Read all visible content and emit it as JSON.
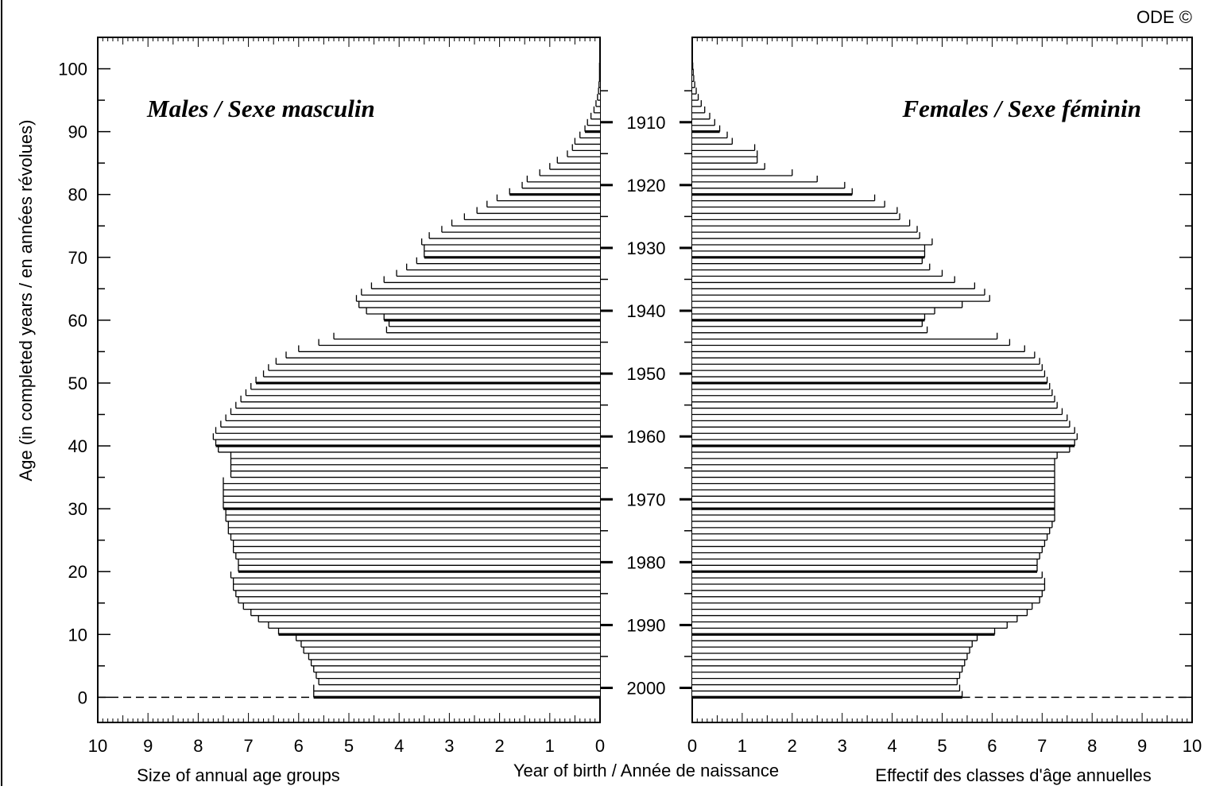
{
  "page": {
    "credit": "ODE ©"
  },
  "chart_data": {
    "type": "bar",
    "orientation": "horizontal",
    "title_left": "Males / Sexe masculin",
    "title_right": "Females / Sexe féminin",
    "ylabel": "Age (in completed years / en années révolues)",
    "xlabel_left": "Size of annual age groups",
    "xlabel_center": "Year of birth / Année de naissance",
    "xlabel_right": "Effectif des classes d'âge annuelles",
    "xlim": [
      0,
      10
    ],
    "ylim": [
      -4,
      105
    ],
    "age_ticks": [
      "0",
      "10",
      "20",
      "30",
      "40",
      "50",
      "60",
      "70",
      "80",
      "90",
      "100"
    ],
    "x_ticks": [
      "0",
      "1",
      "2",
      "3",
      "4",
      "5",
      "6",
      "7",
      "8",
      "9",
      "10"
    ],
    "year_ticks": [
      "1910",
      "1920",
      "1930",
      "1940",
      "1950",
      "1960",
      "1970",
      "1980",
      "1990",
      "2000"
    ],
    "ages": [
      0,
      1,
      2,
      3,
      4,
      5,
      6,
      7,
      8,
      9,
      10,
      11,
      12,
      13,
      14,
      15,
      16,
      17,
      18,
      19,
      20,
      21,
      22,
      23,
      24,
      25,
      26,
      27,
      28,
      29,
      30,
      31,
      32,
      33,
      34,
      35,
      36,
      37,
      38,
      39,
      40,
      41,
      42,
      43,
      44,
      45,
      46,
      47,
      48,
      49,
      50,
      51,
      52,
      53,
      54,
      55,
      56,
      57,
      58,
      59,
      60,
      61,
      62,
      63,
      64,
      65,
      66,
      67,
      68,
      69,
      70,
      71,
      72,
      73,
      74,
      75,
      76,
      77,
      78,
      79,
      80,
      81,
      82,
      83,
      84,
      85,
      86,
      87,
      88,
      89,
      90,
      91,
      92,
      93,
      94,
      95,
      96,
      97,
      98,
      99,
      100
    ],
    "series": [
      {
        "name": "Males / Sexe masculin",
        "values": [
          5.7,
          5.7,
          5.6,
          5.65,
          5.7,
          5.75,
          5.8,
          5.9,
          5.95,
          6.05,
          6.4,
          6.6,
          6.8,
          6.95,
          7.1,
          7.2,
          7.25,
          7.3,
          7.3,
          7.35,
          7.2,
          7.2,
          7.25,
          7.3,
          7.3,
          7.35,
          7.4,
          7.4,
          7.45,
          7.45,
          7.5,
          7.5,
          7.5,
          7.5,
          7.5,
          7.35,
          7.35,
          7.35,
          7.35,
          7.6,
          7.65,
          7.7,
          7.65,
          7.55,
          7.45,
          7.35,
          7.25,
          7.15,
          7.05,
          6.95,
          6.85,
          6.7,
          6.6,
          6.45,
          6.25,
          6.0,
          5.6,
          5.3,
          4.25,
          4.2,
          4.3,
          4.65,
          4.8,
          4.85,
          4.75,
          4.55,
          4.3,
          4.05,
          3.85,
          3.65,
          3.5,
          3.5,
          3.55,
          3.4,
          3.15,
          2.95,
          2.7,
          2.45,
          2.25,
          2.05,
          1.8,
          1.55,
          1.45,
          1.2,
          1.0,
          0.85,
          0.65,
          0.55,
          0.5,
          0.4,
          0.3,
          0.25,
          0.18,
          0.12,
          0.08,
          0.05,
          0.03,
          0.02,
          0.01,
          0.01,
          0.01
        ]
      },
      {
        "name": "Females / Sexe féminin",
        "values": [
          5.4,
          5.35,
          5.3,
          5.35,
          5.4,
          5.45,
          5.5,
          5.55,
          5.6,
          5.7,
          6.05,
          6.3,
          6.5,
          6.7,
          6.8,
          6.95,
          7.0,
          7.05,
          7.05,
          7.0,
          6.9,
          6.9,
          6.95,
          7.0,
          7.05,
          7.1,
          7.15,
          7.2,
          7.25,
          7.25,
          7.25,
          7.25,
          7.25,
          7.25,
          7.25,
          7.25,
          7.25,
          7.25,
          7.3,
          7.55,
          7.65,
          7.7,
          7.65,
          7.55,
          7.5,
          7.4,
          7.3,
          7.25,
          7.2,
          7.15,
          7.1,
          7.05,
          7.0,
          6.95,
          6.85,
          6.65,
          6.35,
          6.1,
          4.7,
          4.6,
          4.65,
          4.85,
          5.4,
          5.95,
          5.85,
          5.65,
          5.25,
          5.0,
          4.75,
          4.6,
          4.65,
          4.65,
          4.8,
          4.55,
          4.5,
          4.35,
          4.15,
          4.1,
          3.85,
          3.65,
          3.2,
          3.05,
          2.5,
          2.0,
          1.45,
          1.3,
          1.3,
          1.25,
          0.8,
          0.7,
          0.55,
          0.45,
          0.35,
          0.25,
          0.18,
          0.12,
          0.08,
          0.05,
          0.03,
          0.02,
          0.01
        ]
      }
    ]
  }
}
